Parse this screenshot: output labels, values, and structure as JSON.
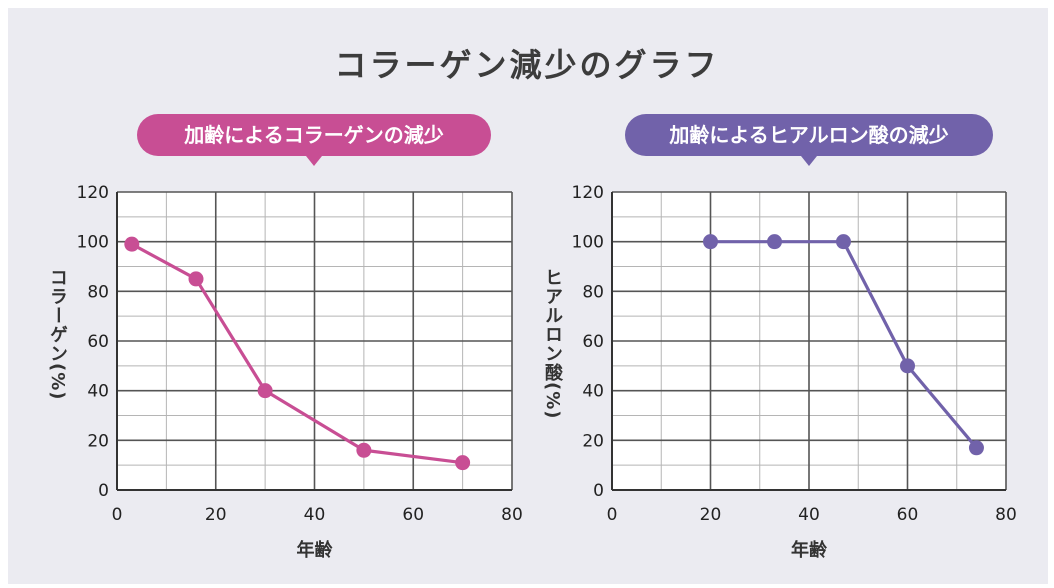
{
  "page": {
    "title": "コラーゲン減少のグラフ",
    "background": "#ebebf1"
  },
  "chart_data": [
    {
      "type": "line",
      "title": "加齢によるコラーゲンの減少",
      "color": "#c84e94",
      "xlabel": "年齢",
      "ylabel": "コラーゲン(%)",
      "xlim": [
        0,
        80
      ],
      "ylim": [
        0,
        120
      ],
      "xticks": [
        "0",
        "20",
        "40",
        "60",
        "80"
      ],
      "yticks": [
        "0",
        "20",
        "40",
        "60",
        "80",
        "100",
        "120"
      ],
      "grid": true,
      "series": [
        {
          "x": [
            3,
            16,
            30,
            50,
            70
          ],
          "y": [
            99,
            85,
            40,
            16,
            11
          ]
        }
      ]
    },
    {
      "type": "line",
      "title": "加齢によるヒアルロン酸の減少",
      "color": "#7162aa",
      "xlabel": "年齢",
      "ylabel": "ヒアルロン酸(%)",
      "xlim": [
        0,
        80
      ],
      "ylim": [
        0,
        120
      ],
      "xticks": [
        "0",
        "20",
        "40",
        "60",
        "80"
      ],
      "yticks": [
        "0",
        "20",
        "40",
        "60",
        "80",
        "100",
        "120"
      ],
      "grid": true,
      "series": [
        {
          "x": [
            20,
            33,
            47,
            60,
            74
          ],
          "y": [
            100,
            100,
            100,
            50,
            17
          ]
        }
      ]
    }
  ]
}
